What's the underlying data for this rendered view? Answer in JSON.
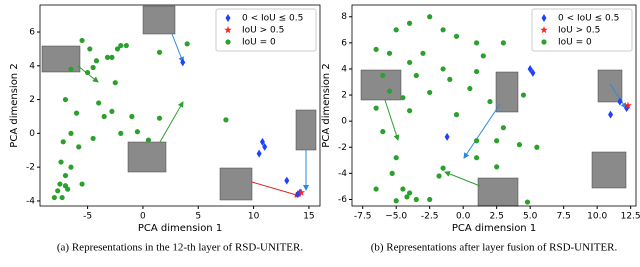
{
  "chart_data": [
    {
      "type": "scatter",
      "x_label": "PCA dimension 1",
      "y_label": "PCA dimension 2",
      "caption": "(a) Representations in the 12-th layer of RSD-UNITER.",
      "xlim": [
        -9.3,
        16
      ],
      "ylim": [
        -4.3,
        7.6
      ],
      "xticks": [
        -5,
        0,
        5,
        10,
        15
      ],
      "yticks": [
        -4,
        -2,
        0,
        2,
        4,
        6
      ],
      "grid": false,
      "legend": "upper right",
      "series": [
        {
          "name": "0 < IoU ≤ 0.5",
          "color": "#2040ff",
          "marker": "diamond",
          "x": [
            3.6,
            10.8,
            11,
            10.5,
            13,
            14.2,
            14
          ],
          "values": [
            4.2,
            -0.5,
            -0.8,
            -1.2,
            -2.8,
            -3.5,
            -3.6
          ]
        },
        {
          "name": "IoU > 0.5",
          "color": "#ff2020",
          "marker": "star",
          "x": [
            14.3
          ],
          "values": [
            -3.5
          ]
        },
        {
          "name": "IoU = 0",
          "color": "#2ca02c",
          "marker": "circle",
          "x": [
            -5.5,
            -4.8,
            -4.2,
            -3.2,
            -2.8,
            -2.3,
            -2,
            -1.5,
            1.5,
            4,
            -6.5,
            -5,
            -4.5,
            -2.5,
            -7,
            -4,
            -6,
            -3.5,
            -2.8,
            -1,
            1.5,
            -7.2,
            -6.5,
            -5.8,
            -4.5,
            -2,
            -0.5,
            0.5,
            7.5,
            -7,
            -7.5,
            -7.7,
            -7.3,
            -6.8,
            -7,
            -8,
            -6.5,
            -5.5,
            -7.4
          ],
          "values": [
            5.5,
            5.0,
            4.3,
            4.5,
            4.5,
            5.0,
            5.2,
            5.2,
            4.8,
            5.3,
            3.8,
            3.6,
            3.9,
            3.0,
            2.0,
            1.8,
            1.2,
            1.0,
            1.3,
            1.0,
            0.9,
            -0.5,
            0.0,
            -0.8,
            -0.3,
            0.0,
            0.1,
            -0.4,
            0.8,
            -2.5,
            -3.0,
            -3.4,
            -3.8,
            -3.3,
            -3.1,
            -3.8,
            -2.0,
            -3.0,
            -1.7
          ]
        }
      ]
    },
    {
      "type": "scatter",
      "x_label": "PCA dimension 1",
      "y_label": "PCA dimension 2",
      "caption": "(b) Representations after layer fusion of RSD-UNITER.",
      "xlim": [
        -8.3,
        12.9
      ],
      "ylim": [
        -6.5,
        8.9
      ],
      "xticks": [
        -7.5,
        {
          "value": -5,
          "label": "−5.0"
        },
        -2.5,
        {
          "value": 0,
          "label": "0.0"
        },
        2.5,
        {
          "value": 5,
          "label": "5.0"
        },
        7.5,
        {
          "value": 10,
          "label": "10.0"
        },
        12.5
      ],
      "yticks": [
        -6,
        -4,
        -2,
        0,
        2,
        4,
        6,
        8
      ],
      "grid": false,
      "legend": "upper right",
      "series": [
        {
          "name": "0 < IoU ≤ 0.5",
          "color": "#2040ff",
          "marker": "diamond",
          "x": [
            5,
            5.2,
            -1.2,
            11,
            11.7,
            12.2
          ],
          "values": [
            4.0,
            3.7,
            -1.2,
            0.5,
            1.5,
            1.0
          ]
        },
        {
          "name": "IoU > 0.5",
          "color": "#ff2020",
          "marker": "star",
          "x": [
            12.3
          ],
          "values": [
            1.2
          ]
        },
        {
          "name": "IoU = 0",
          "color": "#2ca02c",
          "marker": "circle",
          "x": [
            -2.5,
            -4,
            -5,
            -1.5,
            -6.5,
            -5.5,
            -3,
            -0.5,
            1,
            3,
            1.5,
            -4,
            -1.5,
            1,
            -6,
            -3.5,
            -1,
            -5.5,
            -4.5,
            -2.5,
            0.5,
            2,
            4.5,
            -6.5,
            -4,
            -0.5,
            3,
            -6,
            1,
            2.5,
            4.2,
            5.5,
            -5,
            -1.8,
            1,
            2.5,
            -5.3,
            -4.5,
            -4,
            -4.2,
            -3.5,
            -5,
            -6.5,
            -2.5,
            4.8,
            -1.5
          ],
          "values": [
            8.0,
            7.5,
            7.0,
            7.0,
            5.5,
            5.2,
            5.2,
            6.5,
            6.0,
            6.0,
            5.0,
            4.5,
            4.0,
            3.8,
            3.5,
            3.5,
            3.2,
            2.3,
            1.8,
            2.2,
            2.5,
            1.5,
            2.0,
            1.0,
            0.8,
            0.5,
            -0.5,
            -0.8,
            -1.5,
            -1.5,
            -1.8,
            -2.0,
            -2.8,
            -4.2,
            -2.8,
            -3.5,
            -4.0,
            -5.2,
            -5.5,
            -5.8,
            -6.0,
            -6.1,
            -5.2,
            -6.0,
            -6.2,
            -3.6
          ]
        }
      ]
    }
  ]
}
